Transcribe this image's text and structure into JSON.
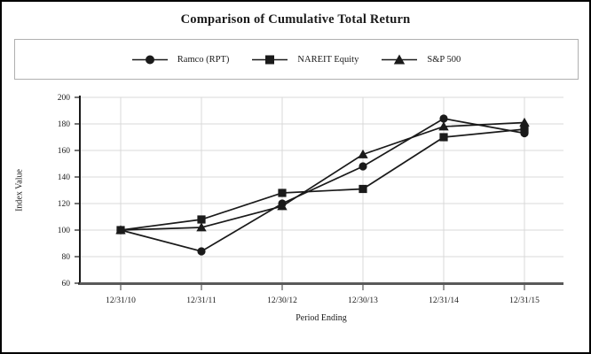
{
  "title": "Comparison of Cumulative Total Return",
  "legend": {
    "items": [
      {
        "label": "Ramco (RPT)",
        "marker": "circle"
      },
      {
        "label": "NAREIT Equity",
        "marker": "square"
      },
      {
        "label": "S&P 500",
        "marker": "triangle"
      }
    ]
  },
  "chart_data": {
    "type": "line",
    "title": "Comparison of Cumulative Total Return",
    "xlabel": "Period Ending",
    "ylabel": "Index Value",
    "categories": [
      "12/31/10",
      "12/31/11",
      "12/30/12",
      "12/30/13",
      "12/31/14",
      "12/31/15"
    ],
    "series": [
      {
        "name": "Ramco (RPT)",
        "marker": "circle",
        "values": [
          100,
          84,
          120,
          148,
          184,
          173
        ]
      },
      {
        "name": "NAREIT Equity",
        "marker": "square",
        "values": [
          100,
          108,
          128,
          131,
          170,
          176
        ]
      },
      {
        "name": "S&P 500",
        "marker": "triangle",
        "values": [
          100,
          102,
          118,
          157,
          178,
          181
        ]
      }
    ],
    "ylim": [
      60,
      200
    ],
    "ytick_step": 20,
    "grid": true,
    "legend_position": "top",
    "colors": {
      "line": "#1a1a1a",
      "marker": "#1a1a1a",
      "grid": "#d9d9d9",
      "axis_y": "#1a1a1a",
      "axis_x": "#595959",
      "text": "#1a1a1a"
    }
  }
}
